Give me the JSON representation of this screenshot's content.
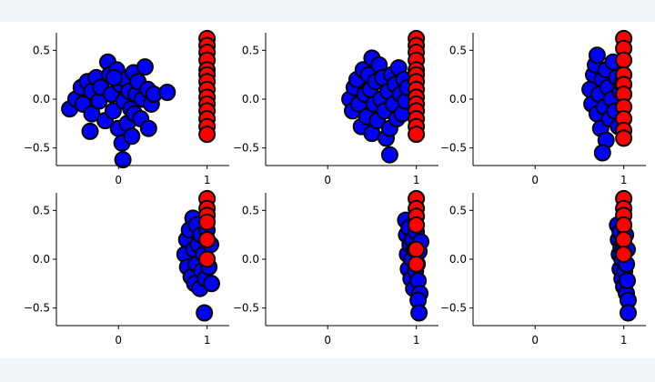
{
  "colors": {
    "page_background": "#f3f6f9",
    "figure_background": "#ffffff",
    "red_fill": "#ff0000",
    "blue_fill": "#0000ff",
    "marker_edge": "#000000",
    "axis": "#000000"
  },
  "chart_data": [
    {
      "type": "scatter",
      "title": "",
      "xlabel": "",
      "ylabel": "",
      "xlim": [
        -0.7,
        1.25
      ],
      "ylim": [
        -0.68,
        0.68
      ],
      "xticks": [
        "0",
        "1"
      ],
      "yticks": [
        "−0.5",
        "0.0",
        "0.5"
      ],
      "grid": false,
      "series": [
        {
          "color": "#0000ff",
          "points": [
            [
              -0.55,
              -0.1
            ],
            [
              -0.48,
              0.0
            ],
            [
              -0.42,
              0.12
            ],
            [
              -0.4,
              -0.05
            ],
            [
              -0.35,
              0.18
            ],
            [
              -0.3,
              -0.15
            ],
            [
              -0.3,
              0.08
            ],
            [
              -0.32,
              -0.33
            ],
            [
              -0.25,
              0.22
            ],
            [
              -0.22,
              -0.02
            ],
            [
              -0.2,
              0.12
            ],
            [
              -0.15,
              -0.22
            ],
            [
              -0.12,
              0.38
            ],
            [
              -0.1,
              0.25
            ],
            [
              -0.08,
              0.05
            ],
            [
              -0.06,
              -0.12
            ],
            [
              -0.02,
              0.3
            ],
            [
              0.0,
              -0.3
            ],
            [
              0.02,
              0.15
            ],
            [
              0.04,
              -0.45
            ],
            [
              0.06,
              -0.02
            ],
            [
              0.08,
              0.2
            ],
            [
              0.1,
              -0.25
            ],
            [
              0.12,
              0.08
            ],
            [
              0.14,
              -0.1
            ],
            [
              0.15,
              -0.38
            ],
            [
              0.17,
              0.27
            ],
            [
              0.18,
              -0.15
            ],
            [
              0.2,
              0.05
            ],
            [
              0.22,
              0.18
            ],
            [
              0.25,
              -0.2
            ],
            [
              0.27,
              0.0
            ],
            [
              0.3,
              0.33
            ],
            [
              0.33,
              0.1
            ],
            [
              0.34,
              -0.3
            ],
            [
              0.37,
              -0.05
            ],
            [
              0.4,
              0.05
            ],
            [
              0.55,
              0.07
            ],
            [
              0.05,
              -0.62
            ],
            [
              -0.05,
              0.22
            ]
          ]
        },
        {
          "color": "#ff0000",
          "points": [
            [
              1.0,
              0.62
            ],
            [
              1.0,
              0.55
            ],
            [
              1.0,
              0.48
            ],
            [
              1.0,
              0.4
            ],
            [
              1.0,
              0.3
            ],
            [
              1.0,
              0.25
            ],
            [
              1.0,
              0.18
            ],
            [
              1.0,
              0.1
            ],
            [
              1.0,
              0.02
            ],
            [
              1.0,
              -0.05
            ],
            [
              1.0,
              -0.12
            ],
            [
              1.0,
              -0.2
            ],
            [
              1.0,
              -0.28
            ],
            [
              1.0,
              -0.36
            ]
          ]
        }
      ]
    },
    {
      "type": "scatter",
      "title": "",
      "xlabel": "",
      "ylabel": "",
      "xlim": [
        -0.7,
        1.25
      ],
      "ylim": [
        -0.68,
        0.68
      ],
      "xticks": [
        "0",
        "1"
      ],
      "yticks": [
        "−0.5",
        "0.0",
        "0.5"
      ],
      "grid": false,
      "series": [
        {
          "color": "#0000ff",
          "points": [
            [
              0.25,
              0.0
            ],
            [
              0.28,
              -0.12
            ],
            [
              0.3,
              0.12
            ],
            [
              0.33,
              0.2
            ],
            [
              0.35,
              -0.05
            ],
            [
              0.38,
              -0.28
            ],
            [
              0.4,
              0.3
            ],
            [
              0.42,
              0.05
            ],
            [
              0.44,
              -0.18
            ],
            [
              0.46,
              0.25
            ],
            [
              0.48,
              0.1
            ],
            [
              0.5,
              0.42
            ],
            [
              0.5,
              -0.35
            ],
            [
              0.52,
              -0.05
            ],
            [
              0.54,
              0.18
            ],
            [
              0.56,
              -0.22
            ],
            [
              0.58,
              0.35
            ],
            [
              0.6,
              0.0
            ],
            [
              0.62,
              0.22
            ],
            [
              0.64,
              -0.12
            ],
            [
              0.66,
              -0.4
            ],
            [
              0.68,
              0.08
            ],
            [
              0.7,
              -0.3
            ],
            [
              0.72,
              0.25
            ],
            [
              0.74,
              -0.05
            ],
            [
              0.76,
              0.15
            ],
            [
              0.78,
              -0.2
            ],
            [
              0.8,
              0.32
            ],
            [
              0.82,
              0.05
            ],
            [
              0.84,
              -0.15
            ],
            [
              0.86,
              0.2
            ],
            [
              0.88,
              -0.02
            ],
            [
              0.9,
              0.12
            ],
            [
              0.7,
              -0.57
            ]
          ]
        },
        {
          "color": "#ff0000",
          "points": [
            [
              1.0,
              0.62
            ],
            [
              1.0,
              0.55
            ],
            [
              1.0,
              0.48
            ],
            [
              1.0,
              0.4
            ],
            [
              1.0,
              0.3
            ],
            [
              1.0,
              0.25
            ],
            [
              1.0,
              0.18
            ],
            [
              1.0,
              0.1
            ],
            [
              1.0,
              0.02
            ],
            [
              1.0,
              -0.05
            ],
            [
              1.0,
              -0.12
            ],
            [
              1.0,
              -0.2
            ],
            [
              1.0,
              -0.28
            ],
            [
              1.0,
              -0.36
            ]
          ]
        }
      ]
    },
    {
      "type": "scatter",
      "title": "",
      "xlabel": "",
      "ylabel": "",
      "xlim": [
        -0.7,
        1.25
      ],
      "ylim": [
        -0.68,
        0.68
      ],
      "xticks": [
        "0",
        "1"
      ],
      "yticks": [
        "−0.5",
        "0.0",
        "0.5"
      ],
      "grid": false,
      "series": [
        {
          "color": "#0000ff",
          "points": [
            [
              0.62,
              0.1
            ],
            [
              0.64,
              -0.05
            ],
            [
              0.66,
              0.25
            ],
            [
              0.68,
              0.35
            ],
            [
              0.7,
              -0.15
            ],
            [
              0.7,
              0.45
            ],
            [
              0.72,
              0.05
            ],
            [
              0.74,
              -0.3
            ],
            [
              0.76,
              0.2
            ],
            [
              0.78,
              -0.08
            ],
            [
              0.8,
              0.3
            ],
            [
              0.8,
              -0.42
            ],
            [
              0.82,
              0.12
            ],
            [
              0.84,
              -0.2
            ],
            [
              0.86,
              0.0
            ],
            [
              0.88,
              0.38
            ],
            [
              0.9,
              -0.12
            ],
            [
              0.92,
              0.22
            ],
            [
              0.94,
              -0.28
            ],
            [
              0.96,
              0.08
            ],
            [
              0.98,
              0.16
            ],
            [
              0.76,
              -0.55
            ]
          ]
        },
        {
          "color": "#ff0000",
          "points": [
            [
              1.0,
              0.62
            ],
            [
              1.0,
              0.52
            ],
            [
              1.0,
              0.4
            ],
            [
              1.0,
              0.25
            ],
            [
              1.0,
              0.15
            ],
            [
              1.0,
              0.05
            ],
            [
              1.0,
              -0.08
            ],
            [
              1.0,
              -0.2
            ],
            [
              1.0,
              -0.32
            ],
            [
              1.0,
              -0.4
            ]
          ]
        }
      ]
    },
    {
      "type": "scatter",
      "title": "",
      "xlabel": "",
      "ylabel": "",
      "xlim": [
        -0.7,
        1.25
      ],
      "ylim": [
        -0.68,
        0.68
      ],
      "xticks": [
        "0",
        "1"
      ],
      "yticks": [
        "−0.5",
        "0.0",
        "0.5"
      ],
      "grid": false,
      "series": [
        {
          "color": "#0000ff",
          "points": [
            [
              0.75,
              0.05
            ],
            [
              0.77,
              0.2
            ],
            [
              0.78,
              -0.08
            ],
            [
              0.8,
              0.3
            ],
            [
              0.82,
              -0.18
            ],
            [
              0.84,
              0.42
            ],
            [
              0.85,
              0.1
            ],
            [
              0.86,
              -0.25
            ],
            [
              0.88,
              0.35
            ],
            [
              0.88,
              -0.05
            ],
            [
              0.9,
              0.15
            ],
            [
              0.92,
              -0.3
            ],
            [
              0.93,
              0.25
            ],
            [
              0.94,
              -0.12
            ],
            [
              0.96,
              0.05
            ],
            [
              0.98,
              -0.2
            ],
            [
              1.0,
              0.3
            ],
            [
              1.02,
              -0.08
            ],
            [
              1.04,
              0.15
            ],
            [
              1.05,
              -0.25
            ],
            [
              0.97,
              -0.55
            ]
          ]
        },
        {
          "color": "#ff0000",
          "points": [
            [
              1.0,
              0.62
            ],
            [
              1.0,
              0.52
            ],
            [
              1.0,
              0.45
            ],
            [
              1.0,
              0.38
            ],
            [
              1.0,
              0.2
            ],
            [
              1.0,
              0.0
            ]
          ]
        }
      ]
    },
    {
      "type": "scatter",
      "title": "",
      "xlabel": "",
      "ylabel": "",
      "xlim": [
        -0.7,
        1.25
      ],
      "ylim": [
        -0.68,
        0.68
      ],
      "xticks": [
        "0",
        "1"
      ],
      "yticks": [
        "−0.5",
        "0.0",
        "0.5"
      ],
      "grid": false,
      "series": [
        {
          "color": "#0000ff",
          "points": [
            [
              0.88,
              0.4
            ],
            [
              0.89,
              0.25
            ],
            [
              0.9,
              0.05
            ],
            [
              0.91,
              -0.1
            ],
            [
              0.92,
              0.32
            ],
            [
              0.93,
              0.15
            ],
            [
              0.94,
              -0.2
            ],
            [
              0.95,
              0.0
            ],
            [
              0.96,
              0.2
            ],
            [
              0.97,
              -0.3
            ],
            [
              0.98,
              0.1
            ],
            [
              0.99,
              -0.12
            ],
            [
              1.0,
              0.28
            ],
            [
              1.01,
              -0.05
            ],
            [
              1.02,
              -0.22
            ],
            [
              1.03,
              0.08
            ],
            [
              1.04,
              -0.35
            ],
            [
              1.05,
              0.18
            ],
            [
              1.02,
              -0.42
            ],
            [
              1.03,
              -0.55
            ]
          ]
        },
        {
          "color": "#ff0000",
          "points": [
            [
              1.0,
              0.62
            ],
            [
              1.0,
              0.52
            ],
            [
              1.0,
              0.44
            ],
            [
              1.0,
              0.35
            ],
            [
              1.0,
              0.1
            ],
            [
              1.0,
              -0.05
            ]
          ]
        }
      ]
    },
    {
      "type": "scatter",
      "title": "",
      "xlabel": "",
      "ylabel": "",
      "xlim": [
        -0.7,
        1.25
      ],
      "ylim": [
        -0.68,
        0.68
      ],
      "xticks": [
        "0",
        "1"
      ],
      "yticks": [
        "−0.5",
        "0.0",
        "0.5"
      ],
      "grid": false,
      "series": [
        {
          "color": "#0000ff",
          "points": [
            [
              0.93,
              0.35
            ],
            [
              0.94,
              0.2
            ],
            [
              0.95,
              0.05
            ],
            [
              0.96,
              -0.1
            ],
            [
              0.96,
              0.28
            ],
            [
              0.97,
              0.12
            ],
            [
              0.98,
              -0.2
            ],
            [
              0.98,
              0.0
            ],
            [
              0.99,
              0.18
            ],
            [
              1.0,
              -0.28
            ],
            [
              1.0,
              0.08
            ],
            [
              1.01,
              -0.12
            ],
            [
              1.02,
              0.25
            ],
            [
              1.03,
              -0.05
            ],
            [
              1.03,
              -0.35
            ],
            [
              1.04,
              0.1
            ],
            [
              1.04,
              -0.22
            ],
            [
              1.05,
              -0.42
            ],
            [
              1.05,
              -0.55
            ]
          ]
        },
        {
          "color": "#ff0000",
          "points": [
            [
              1.0,
              0.62
            ],
            [
              1.0,
              0.52
            ],
            [
              1.0,
              0.45
            ],
            [
              1.0,
              0.35
            ],
            [
              1.0,
              0.2
            ],
            [
              1.0,
              0.05
            ]
          ]
        }
      ]
    }
  ]
}
